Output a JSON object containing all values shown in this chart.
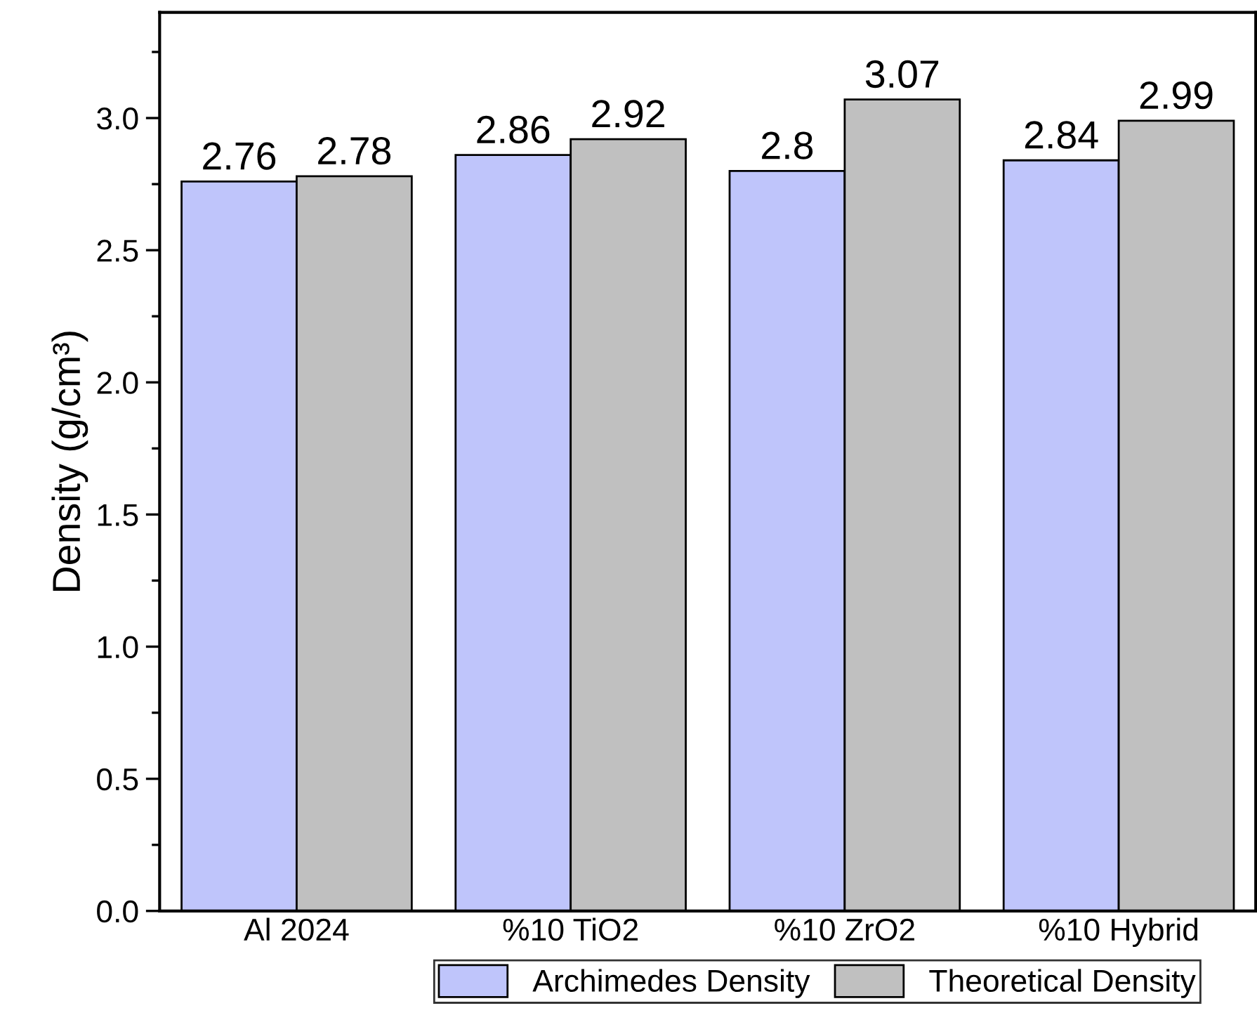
{
  "chart_data": {
    "type": "bar",
    "ylabel": "Density (g/cm³)",
    "categories": [
      "Al 2024",
      "%10 TiO2",
      "%10 ZrO2",
      "%10 Hybrid"
    ],
    "series": [
      {
        "name": "Archimedes Density",
        "color": "#bfc5fb",
        "values": [
          2.76,
          2.86,
          2.8,
          2.84
        ]
      },
      {
        "name": "Theoretical Density",
        "color": "#c0c0c0",
        "values": [
          2.78,
          2.92,
          3.07,
          2.99
        ]
      }
    ],
    "ylim": [
      0,
      3.4
    ],
    "yticks": [
      {
        "value": 0,
        "label": "0.0"
      },
      {
        "value": 0.5,
        "label": "0.5"
      },
      {
        "value": 1,
        "label": "1.0"
      },
      {
        "value": 1.5,
        "label": "1.5"
      },
      {
        "value": 2,
        "label": "2.0"
      },
      {
        "value": 2.5,
        "label": "2.5"
      },
      {
        "value": 3,
        "label": "3.0"
      }
    ],
    "data_labels": true,
    "grid": false,
    "legend": "bottom"
  }
}
